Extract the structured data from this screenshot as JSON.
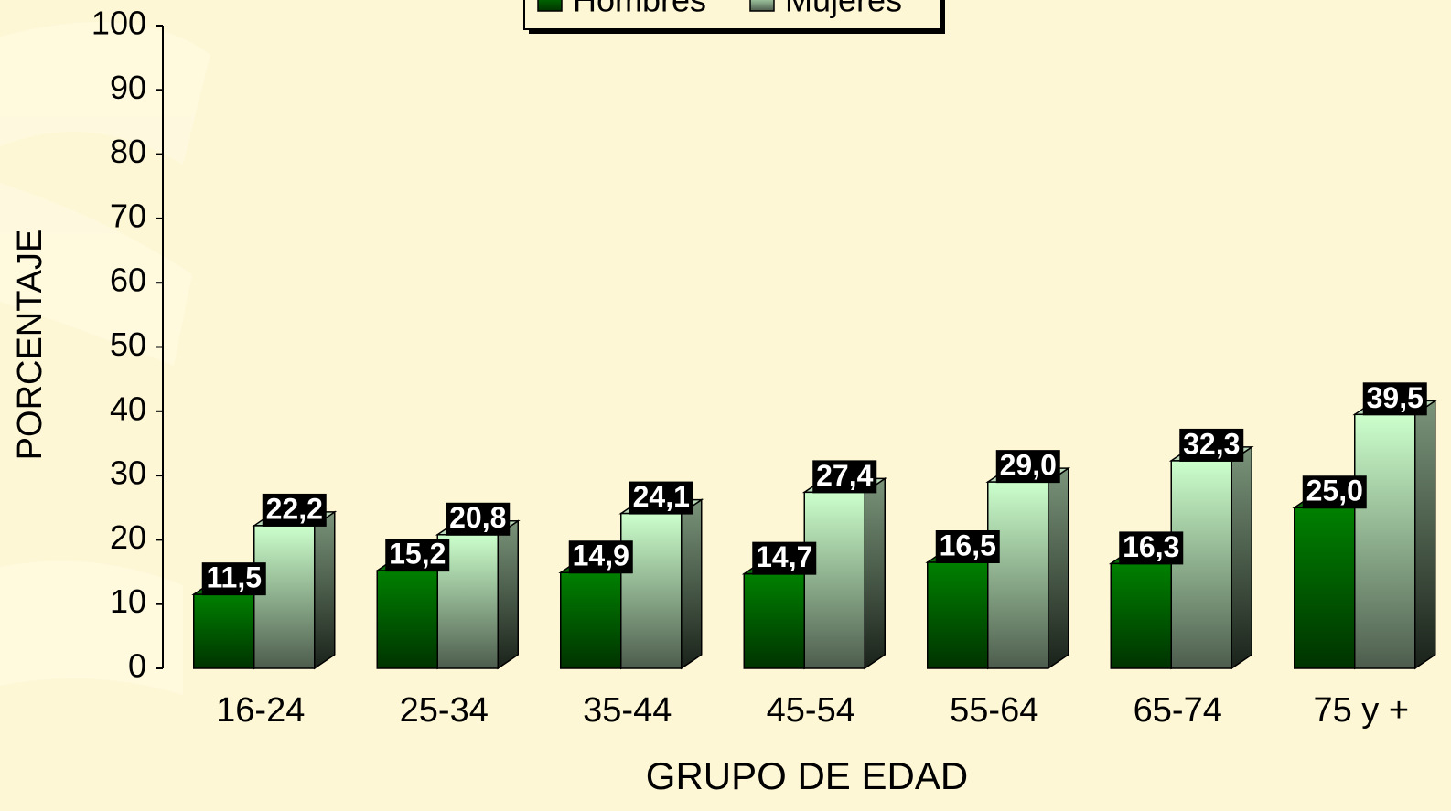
{
  "chart_data": {
    "type": "bar3d",
    "xlabel": "GRUPO DE EDAD",
    "ylabel": "PORCENTAJE",
    "categories": [
      "16-24",
      "25-34",
      "35-44",
      "45-54",
      "55-64",
      "65-74",
      "75 y +"
    ],
    "series": [
      {
        "name": "Hombres",
        "color": "#008000",
        "values": [
          11.5,
          15.2,
          14.9,
          14.7,
          16.5,
          16.3,
          25.0
        ],
        "value_labels": [
          "11,5",
          "15,2",
          "14,9",
          "14,7",
          "16,5",
          "16,3",
          "25,0"
        ]
      },
      {
        "name": "Mujeres",
        "color": "#ccffcc",
        "values": [
          22.2,
          20.8,
          24.1,
          27.4,
          29.0,
          32.3,
          39.5
        ],
        "value_labels": [
          "22,2",
          "20,8",
          "24,1",
          "27,4",
          "29,0",
          "32,3",
          "39,5"
        ]
      }
    ],
    "ylim": [
      0,
      100
    ],
    "yticks": [
      0,
      10,
      20,
      30,
      40,
      50,
      60,
      70,
      80,
      90,
      100
    ],
    "legend": "top"
  }
}
